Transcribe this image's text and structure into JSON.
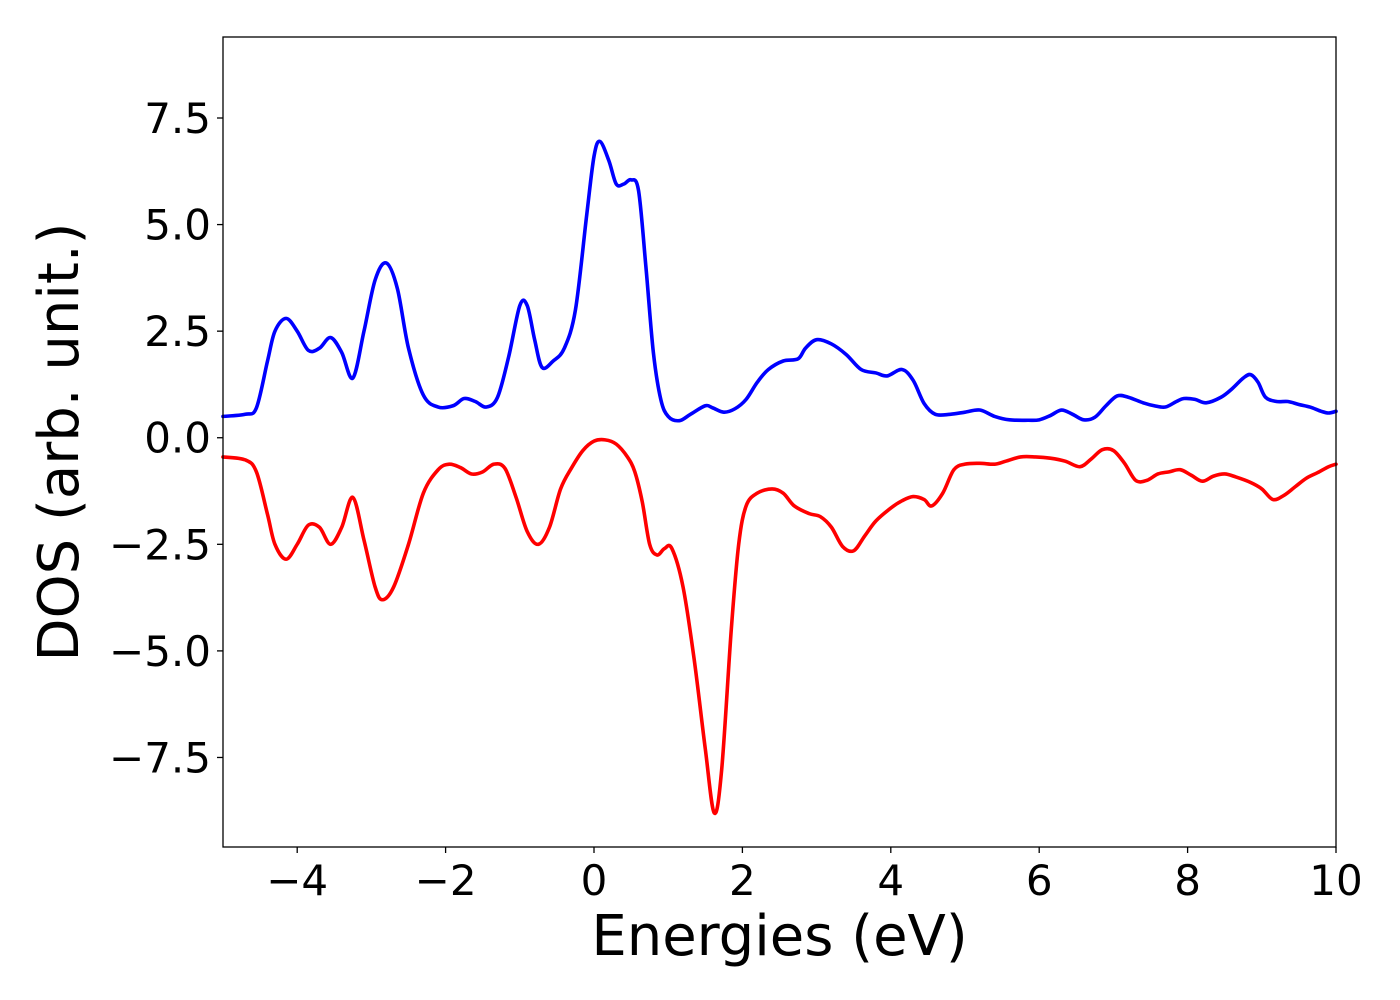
{
  "chart_data": {
    "type": "line",
    "title": "",
    "xlabel": "Energies (eV)",
    "ylabel": "DOS (arb. unit.)",
    "xlim": [
      -5,
      10
    ],
    "ylim": [
      -9.6,
      9.4
    ],
    "grid": false,
    "legend": "none",
    "x_ticks": [
      {
        "value": -4,
        "label": "−4"
      },
      {
        "value": -2,
        "label": "−2"
      },
      {
        "value": 0,
        "label": "0"
      },
      {
        "value": 2,
        "label": "2"
      },
      {
        "value": 4,
        "label": "4"
      },
      {
        "value": 6,
        "label": "6"
      },
      {
        "value": 8,
        "label": "8"
      },
      {
        "value": 10,
        "label": "10"
      }
    ],
    "y_ticks": [
      {
        "value": 7.5,
        "label": "7.5"
      },
      {
        "value": 5.0,
        "label": "5.0"
      },
      {
        "value": 2.5,
        "label": "2.5"
      },
      {
        "value": 0.0,
        "label": "0.0"
      },
      {
        "value": -2.5,
        "label": "−2.5"
      },
      {
        "value": -5.0,
        "label": "−5.0"
      },
      {
        "value": -7.5,
        "label": "−7.5"
      }
    ],
    "series": [
      {
        "color": "#0000ff",
        "points": [
          [
            -5.0,
            0.5
          ],
          [
            -4.7,
            0.55
          ],
          [
            -4.55,
            0.7
          ],
          [
            -4.4,
            1.8
          ],
          [
            -4.3,
            2.5
          ],
          [
            -4.15,
            2.8
          ],
          [
            -4.0,
            2.5
          ],
          [
            -3.85,
            2.05
          ],
          [
            -3.7,
            2.1
          ],
          [
            -3.55,
            2.35
          ],
          [
            -3.4,
            2.0
          ],
          [
            -3.25,
            1.4
          ],
          [
            -3.1,
            2.5
          ],
          [
            -2.95,
            3.7
          ],
          [
            -2.8,
            4.1
          ],
          [
            -2.65,
            3.5
          ],
          [
            -2.5,
            2.1
          ],
          [
            -2.3,
            1.0
          ],
          [
            -2.1,
            0.72
          ],
          [
            -1.9,
            0.75
          ],
          [
            -1.75,
            0.92
          ],
          [
            -1.6,
            0.85
          ],
          [
            -1.45,
            0.72
          ],
          [
            -1.3,
            0.95
          ],
          [
            -1.15,
            1.9
          ],
          [
            -1.0,
            3.1
          ],
          [
            -0.9,
            3.1
          ],
          [
            -0.8,
            2.3
          ],
          [
            -0.7,
            1.65
          ],
          [
            -0.55,
            1.8
          ],
          [
            -0.4,
            2.1
          ],
          [
            -0.25,
            3.0
          ],
          [
            -0.1,
            5.2
          ],
          [
            0.0,
            6.6
          ],
          [
            0.08,
            6.95
          ],
          [
            0.2,
            6.5
          ],
          [
            0.3,
            5.95
          ],
          [
            0.4,
            5.95
          ],
          [
            0.5,
            6.05
          ],
          [
            0.6,
            5.8
          ],
          [
            0.7,
            4.0
          ],
          [
            0.8,
            2.0
          ],
          [
            0.9,
            0.9
          ],
          [
            1.0,
            0.5
          ],
          [
            1.15,
            0.4
          ],
          [
            1.3,
            0.55
          ],
          [
            1.5,
            0.75
          ],
          [
            1.6,
            0.7
          ],
          [
            1.75,
            0.6
          ],
          [
            1.9,
            0.68
          ],
          [
            2.05,
            0.9
          ],
          [
            2.2,
            1.3
          ],
          [
            2.35,
            1.6
          ],
          [
            2.55,
            1.8
          ],
          [
            2.75,
            1.85
          ],
          [
            2.85,
            2.1
          ],
          [
            3.0,
            2.3
          ],
          [
            3.2,
            2.2
          ],
          [
            3.4,
            1.95
          ],
          [
            3.6,
            1.6
          ],
          [
            3.8,
            1.52
          ],
          [
            3.95,
            1.45
          ],
          [
            4.15,
            1.6
          ],
          [
            4.3,
            1.35
          ],
          [
            4.45,
            0.8
          ],
          [
            4.6,
            0.55
          ],
          [
            4.8,
            0.55
          ],
          [
            5.0,
            0.6
          ],
          [
            5.2,
            0.65
          ],
          [
            5.4,
            0.5
          ],
          [
            5.6,
            0.42
          ],
          [
            5.85,
            0.41
          ],
          [
            6.0,
            0.42
          ],
          [
            6.15,
            0.52
          ],
          [
            6.3,
            0.65
          ],
          [
            6.45,
            0.55
          ],
          [
            6.6,
            0.42
          ],
          [
            6.75,
            0.48
          ],
          [
            6.9,
            0.75
          ],
          [
            7.05,
            0.98
          ],
          [
            7.2,
            0.95
          ],
          [
            7.4,
            0.82
          ],
          [
            7.55,
            0.75
          ],
          [
            7.7,
            0.72
          ],
          [
            7.85,
            0.85
          ],
          [
            7.95,
            0.92
          ],
          [
            8.1,
            0.9
          ],
          [
            8.25,
            0.82
          ],
          [
            8.45,
            0.95
          ],
          [
            8.6,
            1.15
          ],
          [
            8.75,
            1.4
          ],
          [
            8.85,
            1.48
          ],
          [
            8.95,
            1.3
          ],
          [
            9.05,
            0.95
          ],
          [
            9.2,
            0.85
          ],
          [
            9.35,
            0.85
          ],
          [
            9.5,
            0.78
          ],
          [
            9.65,
            0.72
          ],
          [
            9.8,
            0.62
          ],
          [
            9.9,
            0.58
          ],
          [
            10.0,
            0.62
          ]
        ]
      },
      {
        "color": "#ff0000",
        "points": [
          [
            -5.0,
            -0.45
          ],
          [
            -4.7,
            -0.52
          ],
          [
            -4.55,
            -0.8
          ],
          [
            -4.4,
            -1.8
          ],
          [
            -4.3,
            -2.5
          ],
          [
            -4.15,
            -2.85
          ],
          [
            -4.0,
            -2.5
          ],
          [
            -3.85,
            -2.05
          ],
          [
            -3.7,
            -2.1
          ],
          [
            -3.55,
            -2.5
          ],
          [
            -3.4,
            -2.1
          ],
          [
            -3.25,
            -1.4
          ],
          [
            -3.1,
            -2.4
          ],
          [
            -2.95,
            -3.5
          ],
          [
            -2.85,
            -3.8
          ],
          [
            -2.7,
            -3.5
          ],
          [
            -2.5,
            -2.5
          ],
          [
            -2.3,
            -1.3
          ],
          [
            -2.1,
            -0.75
          ],
          [
            -1.95,
            -0.62
          ],
          [
            -1.8,
            -0.7
          ],
          [
            -1.65,
            -0.85
          ],
          [
            -1.5,
            -0.8
          ],
          [
            -1.35,
            -0.62
          ],
          [
            -1.2,
            -0.72
          ],
          [
            -1.05,
            -1.4
          ],
          [
            -0.9,
            -2.2
          ],
          [
            -0.75,
            -2.5
          ],
          [
            -0.6,
            -2.1
          ],
          [
            -0.45,
            -1.2
          ],
          [
            -0.3,
            -0.7
          ],
          [
            -0.15,
            -0.3
          ],
          [
            0.0,
            -0.08
          ],
          [
            0.15,
            -0.05
          ],
          [
            0.3,
            -0.15
          ],
          [
            0.45,
            -0.45
          ],
          [
            0.55,
            -0.8
          ],
          [
            0.65,
            -1.5
          ],
          [
            0.75,
            -2.5
          ],
          [
            0.85,
            -2.75
          ],
          [
            0.95,
            -2.6
          ],
          [
            1.05,
            -2.6
          ],
          [
            1.2,
            -3.5
          ],
          [
            1.35,
            -5.2
          ],
          [
            1.5,
            -7.3
          ],
          [
            1.62,
            -8.8
          ],
          [
            1.72,
            -7.8
          ],
          [
            1.85,
            -4.5
          ],
          [
            1.95,
            -2.5
          ],
          [
            2.05,
            -1.6
          ],
          [
            2.2,
            -1.3
          ],
          [
            2.4,
            -1.2
          ],
          [
            2.55,
            -1.3
          ],
          [
            2.7,
            -1.6
          ],
          [
            2.9,
            -1.78
          ],
          [
            3.05,
            -1.85
          ],
          [
            3.2,
            -2.1
          ],
          [
            3.35,
            -2.55
          ],
          [
            3.5,
            -2.65
          ],
          [
            3.65,
            -2.3
          ],
          [
            3.8,
            -1.95
          ],
          [
            4.0,
            -1.65
          ],
          [
            4.15,
            -1.48
          ],
          [
            4.3,
            -1.38
          ],
          [
            4.45,
            -1.45
          ],
          [
            4.55,
            -1.6
          ],
          [
            4.7,
            -1.3
          ],
          [
            4.85,
            -0.75
          ],
          [
            5.0,
            -0.62
          ],
          [
            5.2,
            -0.6
          ],
          [
            5.4,
            -0.62
          ],
          [
            5.55,
            -0.55
          ],
          [
            5.75,
            -0.45
          ],
          [
            5.95,
            -0.45
          ],
          [
            6.15,
            -0.48
          ],
          [
            6.35,
            -0.55
          ],
          [
            6.55,
            -0.68
          ],
          [
            6.7,
            -0.5
          ],
          [
            6.85,
            -0.28
          ],
          [
            7.0,
            -0.3
          ],
          [
            7.15,
            -0.6
          ],
          [
            7.3,
            -1.0
          ],
          [
            7.45,
            -1.0
          ],
          [
            7.6,
            -0.85
          ],
          [
            7.75,
            -0.8
          ],
          [
            7.9,
            -0.75
          ],
          [
            8.05,
            -0.88
          ],
          [
            8.2,
            -1.02
          ],
          [
            8.35,
            -0.9
          ],
          [
            8.5,
            -0.85
          ],
          [
            8.65,
            -0.92
          ],
          [
            8.85,
            -1.05
          ],
          [
            9.0,
            -1.2
          ],
          [
            9.15,
            -1.45
          ],
          [
            9.3,
            -1.35
          ],
          [
            9.45,
            -1.15
          ],
          [
            9.6,
            -0.95
          ],
          [
            9.75,
            -0.82
          ],
          [
            9.9,
            -0.68
          ],
          [
            10.0,
            -0.62
          ]
        ]
      }
    ]
  }
}
